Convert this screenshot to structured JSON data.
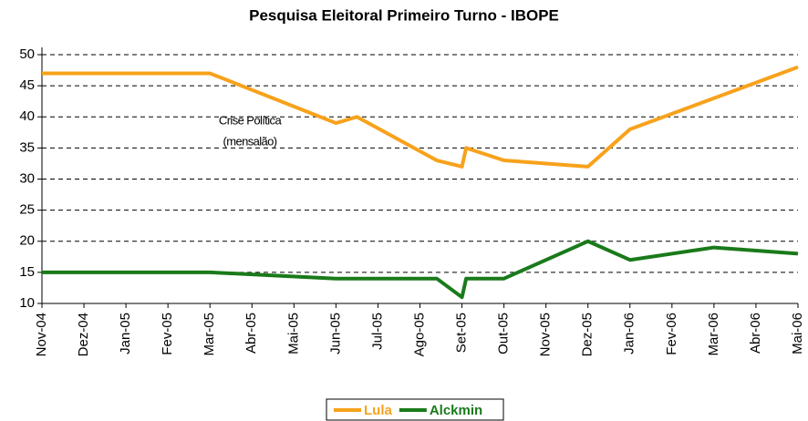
{
  "chart_data": {
    "type": "line",
    "title": "Pesquisa Eleitoral Primeiro Turno - IBOPE",
    "annotation": [
      "Crise Política",
      "(mensalão)"
    ],
    "xlim": [
      0,
      18
    ],
    "xticks": [
      {
        "value": 0,
        "label": "Nov-04"
      },
      {
        "value": 1,
        "label": "Dez-04"
      },
      {
        "value": 2,
        "label": "Jan-05"
      },
      {
        "value": 3,
        "label": "Fev-05"
      },
      {
        "value": 4,
        "label": "Mar-05"
      },
      {
        "value": 5,
        "label": "Abr-05"
      },
      {
        "value": 6,
        "label": "Mai-05"
      },
      {
        "value": 7,
        "label": "Jun-05"
      },
      {
        "value": 8,
        "label": "Jul-05"
      },
      {
        "value": 9,
        "label": "Ago-05"
      },
      {
        "value": 10,
        "label": "Set-05"
      },
      {
        "value": 11,
        "label": "Out-05"
      },
      {
        "value": 12,
        "label": "Nov-05"
      },
      {
        "value": 13,
        "label": "Dez-05"
      },
      {
        "value": 14,
        "label": "Jan-06"
      },
      {
        "value": 15,
        "label": "Fev-06"
      },
      {
        "value": 16,
        "label": "Mar-06"
      },
      {
        "value": 17,
        "label": "Abr-06"
      },
      {
        "value": 18,
        "label": "Mai-06"
      }
    ],
    "ylim": [
      10,
      50
    ],
    "yticks": [
      10,
      15,
      20,
      25,
      30,
      35,
      40,
      45,
      50
    ],
    "grid": true,
    "legend": "bottom",
    "series": [
      {
        "name": "Lula",
        "color": "#f7a21b",
        "x": [
          0,
          4,
          7,
          7.5,
          9.4,
          10,
          10.1,
          11,
          13,
          14,
          18
        ],
        "values": [
          47,
          47,
          39,
          40,
          33,
          32,
          35,
          33,
          32,
          38,
          48
        ]
      },
      {
        "name": "Alckmin",
        "color": "#1a7a1a",
        "x": [
          0,
          4,
          7,
          9.4,
          10,
          10.1,
          11,
          13,
          14,
          16,
          18
        ],
        "values": [
          15,
          15,
          14,
          14,
          11,
          14,
          14,
          20,
          17,
          19,
          18
        ]
      }
    ]
  }
}
